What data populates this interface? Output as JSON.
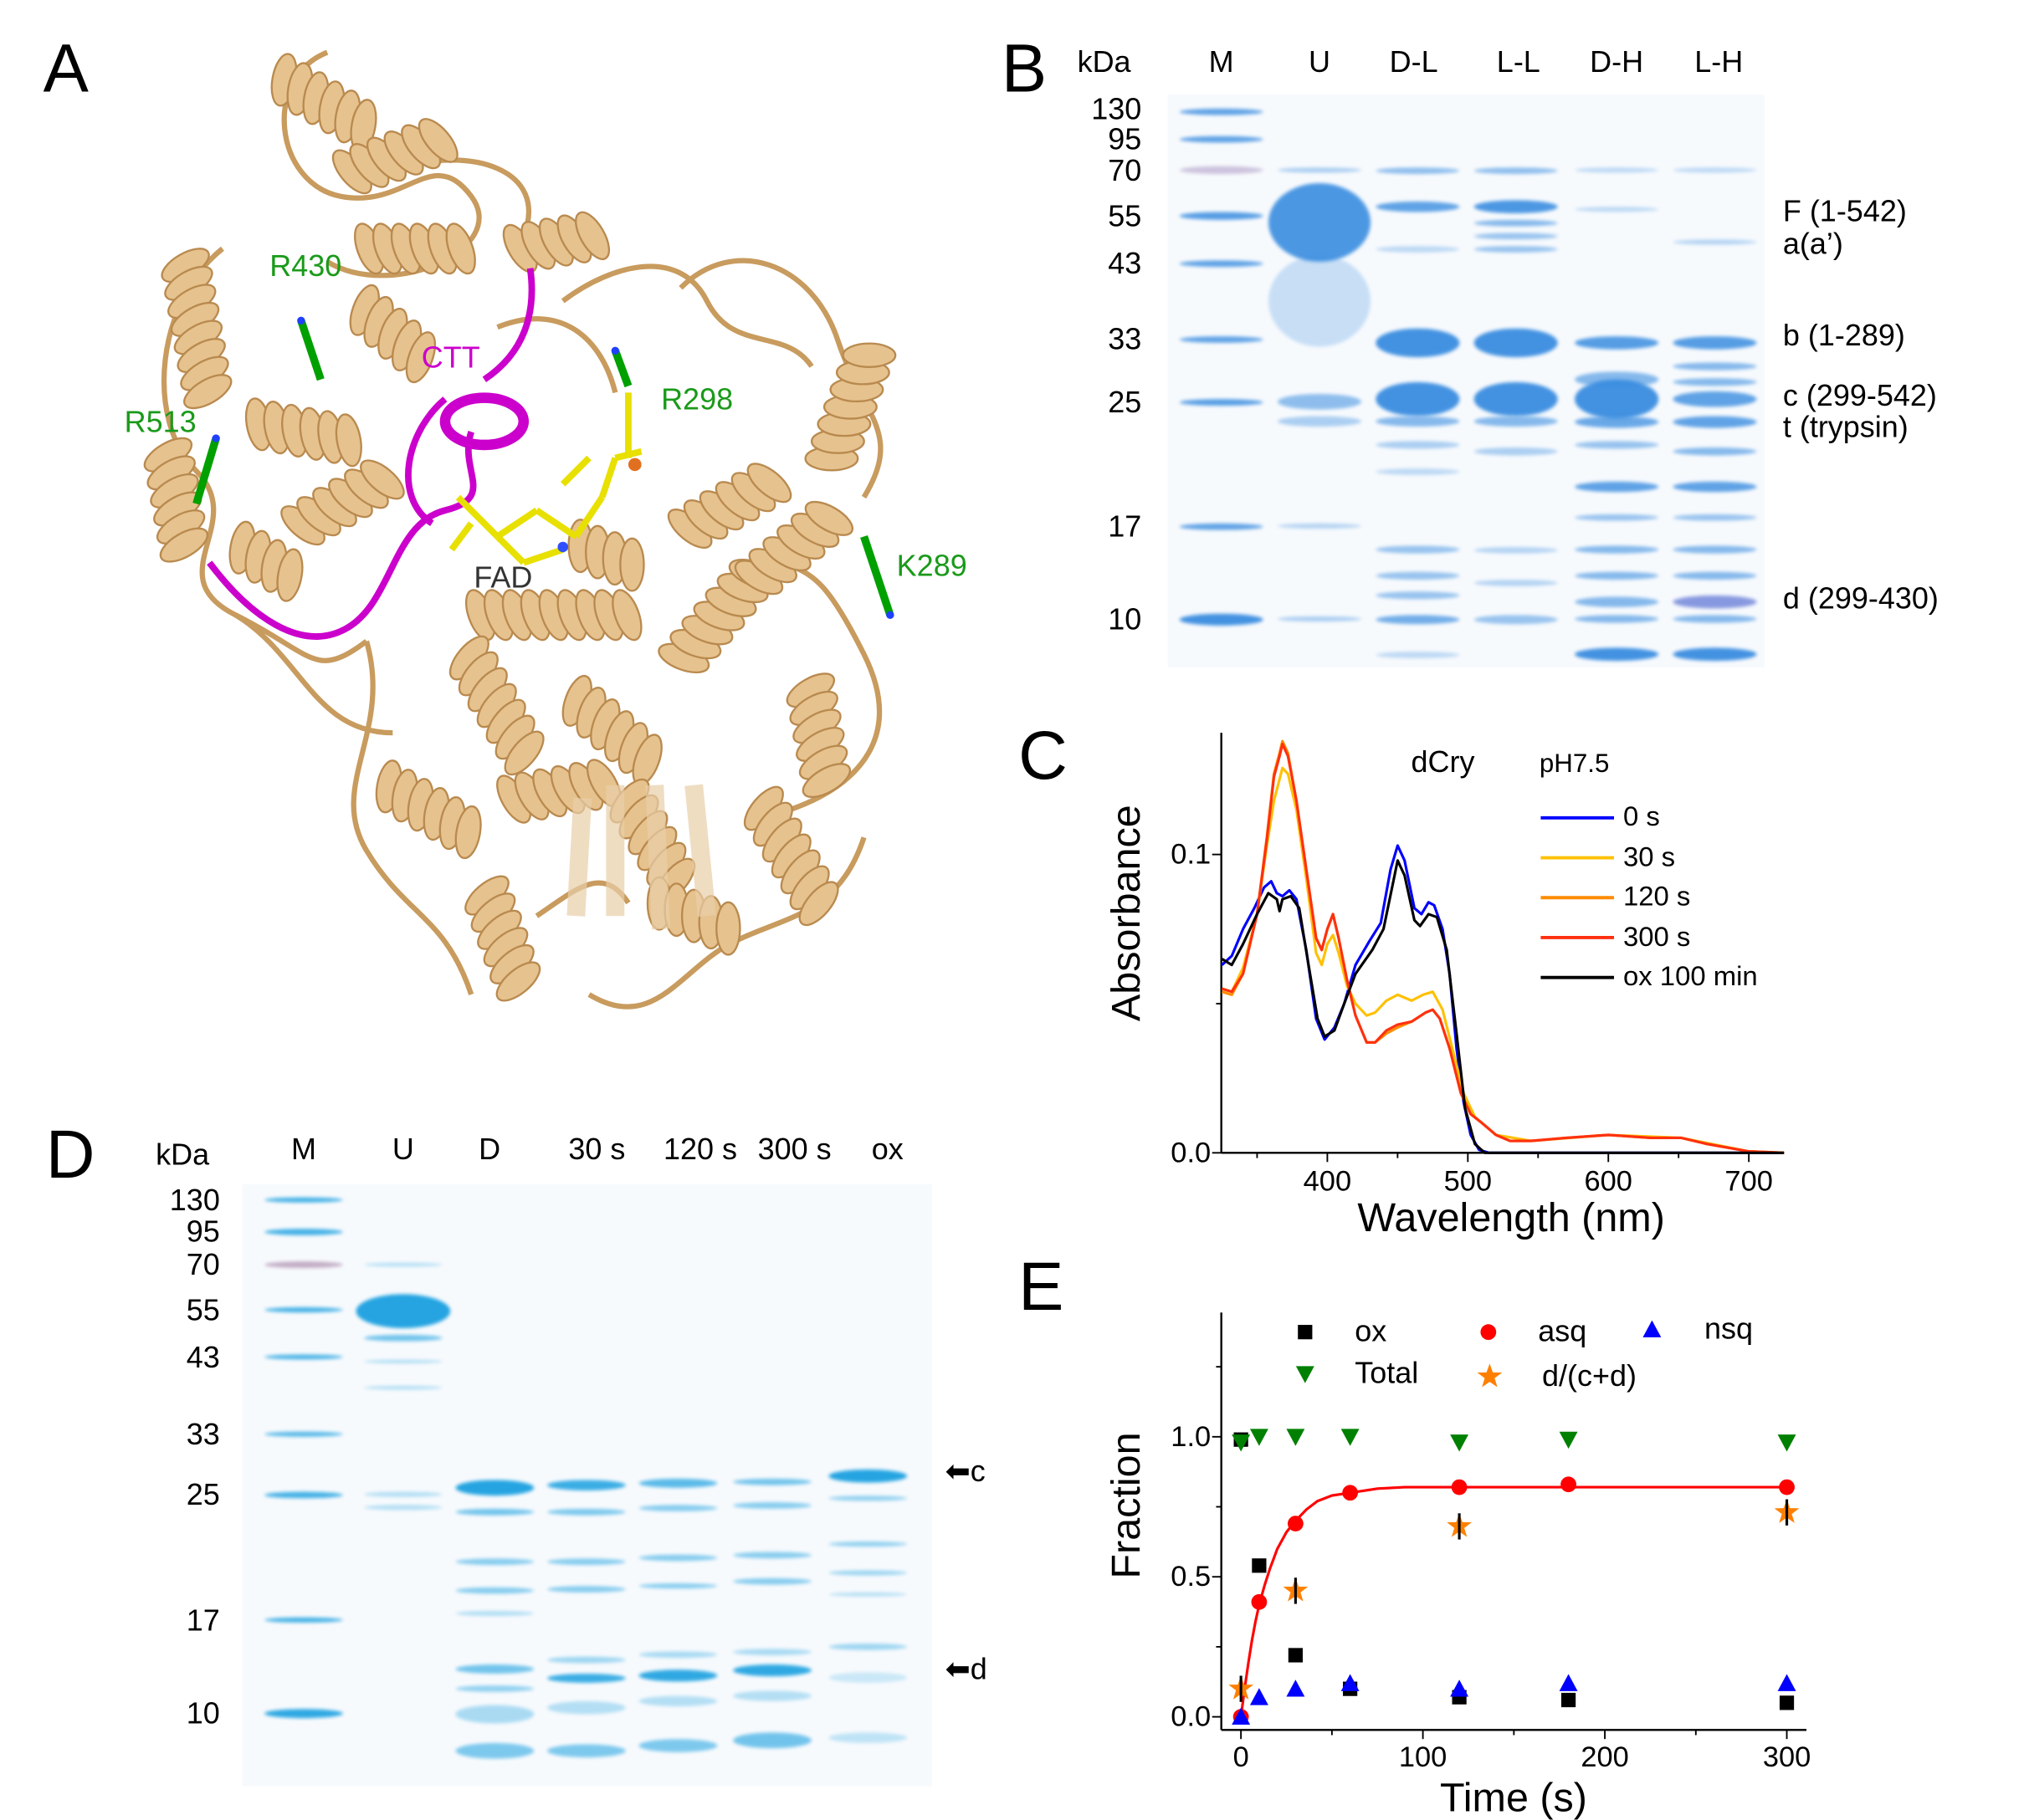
{
  "panel_a": {
    "letter": "A",
    "labels": {
      "r430": "R430",
      "ctt": "CTT",
      "r298": "R298",
      "r513": "R513",
      "fad": "FAD",
      "k289": "K289"
    },
    "colors": {
      "protein": "#deb887",
      "ctt": "#cc00cc",
      "residues": "#00a000",
      "fad": "#e8e000"
    }
  },
  "panel_b": {
    "letter": "B",
    "unit": "kDa",
    "lanes": [
      "M",
      "U",
      "D-L",
      "L-L",
      "D-H",
      "L-H"
    ],
    "markers": [
      "130",
      "95",
      "70",
      "55",
      "43",
      "33",
      "25",
      "17",
      "10"
    ],
    "band_labels": [
      "F (1-542)",
      "a(a’)",
      "b (1-289)",
      "c (299-542)",
      "t (trypsin)",
      "d (299-430)"
    ]
  },
  "panel_d": {
    "letter": "D",
    "unit": "kDa",
    "lanes": [
      "M",
      "U",
      "D",
      "30 s",
      "120 s",
      "300 s",
      "ox"
    ],
    "markers": [
      "130",
      "95",
      "70",
      "55",
      "43",
      "33",
      "25",
      "17",
      "10"
    ],
    "arrows": [
      {
        "icon": "arrow-left-icon",
        "label": "c"
      },
      {
        "icon": "arrow-left-icon",
        "label": "d"
      }
    ]
  },
  "chart_data": [
    {
      "panel": "C",
      "type": "line",
      "xlabel": "Wavelength (nm)",
      "ylabel": "Absorbance",
      "xlim": [
        325,
        725
      ],
      "ylim": [
        0,
        0.14
      ],
      "xticks": [
        "400",
        "500",
        "600",
        "700"
      ],
      "yticks": [
        "0.0",
        "0.1"
      ],
      "annotations": [
        "dCry",
        "pH7.5"
      ],
      "legend": "top-right",
      "grid": false,
      "series": [
        {
          "name": "0 s",
          "color": "#0000ff",
          "points": [
            [
              325,
              0.063
            ],
            [
              332,
              0.066
            ],
            [
              340,
              0.075
            ],
            [
              348,
              0.082
            ],
            [
              355,
              0.089
            ],
            [
              360,
              0.091
            ],
            [
              364,
              0.087
            ],
            [
              368,
              0.086
            ],
            [
              373,
              0.088
            ],
            [
              378,
              0.085
            ],
            [
              385,
              0.068
            ],
            [
              392,
              0.045
            ],
            [
              398,
              0.038
            ],
            [
              405,
              0.042
            ],
            [
              412,
              0.05
            ],
            [
              420,
              0.063
            ],
            [
              430,
              0.071
            ],
            [
              438,
              0.077
            ],
            [
              445,
              0.095
            ],
            [
              450,
              0.103
            ],
            [
              455,
              0.098
            ],
            [
              462,
              0.082
            ],
            [
              467,
              0.08
            ],
            [
              472,
              0.084
            ],
            [
              476,
              0.083
            ],
            [
              482,
              0.075
            ],
            [
              487,
              0.06
            ],
            [
              492,
              0.035
            ],
            [
              497,
              0.017
            ],
            [
              502,
              0.006
            ],
            [
              508,
              0.001
            ],
            [
              515,
              0
            ],
            [
              725,
              0
            ]
          ]
        },
        {
          "name": "30 s",
          "color": "#ffc000",
          "points": [
            [
              325,
              0.055
            ],
            [
              332,
              0.054
            ],
            [
              340,
              0.062
            ],
            [
              350,
              0.08
            ],
            [
              357,
              0.103
            ],
            [
              362,
              0.118
            ],
            [
              368,
              0.129
            ],
            [
              372,
              0.127
            ],
            [
              378,
              0.115
            ],
            [
              385,
              0.092
            ],
            [
              392,
              0.067
            ],
            [
              396,
              0.063
            ],
            [
              400,
              0.07
            ],
            [
              404,
              0.073
            ],
            [
              408,
              0.067
            ],
            [
              414,
              0.056
            ],
            [
              420,
              0.05
            ],
            [
              428,
              0.046
            ],
            [
              434,
              0.047
            ],
            [
              442,
              0.051
            ],
            [
              450,
              0.053
            ],
            [
              460,
              0.051
            ],
            [
              468,
              0.053
            ],
            [
              475,
              0.054
            ],
            [
              482,
              0.048
            ],
            [
              490,
              0.033
            ],
            [
              497,
              0.02
            ],
            [
              505,
              0.012
            ],
            [
              520,
              0.006
            ],
            [
              545,
              0.004
            ],
            [
              600,
              0.006
            ],
            [
              652,
              0.005
            ],
            [
              700,
              0.0005
            ],
            [
              725,
              0
            ]
          ]
        },
        {
          "name": "120 s",
          "color": "#ff8c00",
          "points": [
            [
              325,
              0.054
            ],
            [
              332,
              0.053
            ],
            [
              340,
              0.06
            ],
            [
              350,
              0.08
            ],
            [
              357,
              0.106
            ],
            [
              362,
              0.127
            ],
            [
              366,
              0.134
            ],
            [
              368,
              0.138
            ],
            [
              372,
              0.134
            ],
            [
              378,
              0.118
            ],
            [
              385,
              0.095
            ],
            [
              392,
              0.072
            ],
            [
              396,
              0.068
            ],
            [
              400,
              0.075
            ],
            [
              404,
              0.08
            ],
            [
              408,
              0.072
            ],
            [
              414,
              0.058
            ],
            [
              420,
              0.046
            ],
            [
              428,
              0.037
            ],
            [
              434,
              0.037
            ],
            [
              442,
              0.04
            ],
            [
              450,
              0.042
            ],
            [
              460,
              0.044
            ],
            [
              470,
              0.047
            ],
            [
              475,
              0.048
            ],
            [
              480,
              0.045
            ],
            [
              487,
              0.035
            ],
            [
              495,
              0.02
            ],
            [
              502,
              0.013
            ],
            [
              510,
              0.01
            ],
            [
              520,
              0.006
            ],
            [
              530,
              0.004
            ],
            [
              545,
              0.004
            ],
            [
              570,
              0.005
            ],
            [
              600,
              0.006
            ],
            [
              630,
              0.005
            ],
            [
              652,
              0.005
            ],
            [
              670,
              0.003
            ],
            [
              700,
              0.0005
            ],
            [
              725,
              0
            ]
          ]
        },
        {
          "name": "300 s",
          "color": "#ff3010",
          "points": [
            [
              325,
              0.055
            ],
            [
              332,
              0.054
            ],
            [
              340,
              0.06
            ],
            [
              350,
              0.08
            ],
            [
              357,
              0.105
            ],
            [
              362,
              0.126
            ],
            [
              366,
              0.133
            ],
            [
              368,
              0.137
            ],
            [
              372,
              0.133
            ],
            [
              378,
              0.118
            ],
            [
              385,
              0.095
            ],
            [
              392,
              0.072
            ],
            [
              396,
              0.068
            ],
            [
              400,
              0.075
            ],
            [
              404,
              0.08
            ],
            [
              408,
              0.072
            ],
            [
              414,
              0.058
            ],
            [
              420,
              0.046
            ],
            [
              428,
              0.037
            ],
            [
              434,
              0.037
            ],
            [
              442,
              0.041
            ],
            [
              450,
              0.043
            ],
            [
              460,
              0.044
            ],
            [
              470,
              0.047
            ],
            [
              475,
              0.048
            ],
            [
              480,
              0.045
            ],
            [
              487,
              0.035
            ],
            [
              495,
              0.02
            ],
            [
              502,
              0.013
            ],
            [
              510,
              0.01
            ],
            [
              520,
              0.006
            ],
            [
              530,
              0.004
            ],
            [
              545,
              0.004
            ],
            [
              570,
              0.005
            ],
            [
              600,
              0.006
            ],
            [
              630,
              0.005
            ],
            [
              652,
              0.005
            ],
            [
              670,
              0.003
            ],
            [
              700,
              0.0005
            ],
            [
              725,
              0
            ]
          ]
        },
        {
          "name": "ox 100 min",
          "color": "#000000",
          "points": [
            [
              325,
              0.065
            ],
            [
              332,
              0.063
            ],
            [
              340,
              0.07
            ],
            [
              350,
              0.08
            ],
            [
              358,
              0.087
            ],
            [
              364,
              0.085
            ],
            [
              366,
              0.081
            ],
            [
              368,
              0.085
            ],
            [
              374,
              0.086
            ],
            [
              380,
              0.082
            ],
            [
              387,
              0.062
            ],
            [
              393,
              0.045
            ],
            [
              398,
              0.039
            ],
            [
              405,
              0.041
            ],
            [
              412,
              0.05
            ],
            [
              420,
              0.06
            ],
            [
              432,
              0.068
            ],
            [
              440,
              0.075
            ],
            [
              450,
              0.098
            ],
            [
              455,
              0.093
            ],
            [
              462,
              0.078
            ],
            [
              466,
              0.076
            ],
            [
              472,
              0.08
            ],
            [
              478,
              0.079
            ],
            [
              485,
              0.068
            ],
            [
              492,
              0.04
            ],
            [
              498,
              0.015
            ],
            [
              505,
              0.003
            ],
            [
              512,
              0
            ],
            [
              725,
              0
            ]
          ]
        }
      ]
    },
    {
      "panel": "E",
      "type": "scatter",
      "xlabel": "Time (s)",
      "ylabel": "Fraction",
      "xlim": [
        -10,
        310
      ],
      "ylim": [
        -0.05,
        1.44
      ],
      "xticks": [
        "0",
        "100",
        "200",
        "300"
      ],
      "yticks": [
        "0.0",
        "0.5",
        "1.0"
      ],
      "legend": "top",
      "grid": false,
      "series": [
        {
          "name": "ox",
          "marker": "square",
          "color": "#000000",
          "x": [
            0,
            10,
            30,
            60,
            120,
            180,
            300
          ],
          "y": [
            0.99,
            0.54,
            0.22,
            0.1,
            0.07,
            0.06,
            0.05
          ]
        },
        {
          "name": "asq",
          "marker": "circle",
          "color": "#ff0000",
          "x": [
            0,
            10,
            30,
            60,
            120,
            180,
            300
          ],
          "y": [
            0.0,
            0.41,
            0.69,
            0.8,
            0.82,
            0.83,
            0.82
          ]
        },
        {
          "name": "nsq",
          "marker": "triangle-up",
          "color": "#0000ff",
          "x": [
            0,
            10,
            30,
            60,
            120,
            180,
            300
          ],
          "y": [
            0.0,
            0.07,
            0.1,
            0.12,
            0.1,
            0.12,
            0.12
          ]
        },
        {
          "name": "Total",
          "marker": "triangle-down",
          "color": "#008000",
          "x": [
            0,
            10,
            30,
            60,
            120,
            180,
            300
          ],
          "y": [
            0.98,
            1.0,
            1.0,
            1.0,
            0.98,
            0.99,
            0.98
          ]
        },
        {
          "name": "d/(c+d)",
          "marker": "star",
          "color": "#ff8000",
          "x": [
            0,
            30,
            120,
            300
          ],
          "y": [
            0.1,
            0.45,
            0.68,
            0.73
          ]
        }
      ],
      "fit": {
        "color": "#ff0000",
        "x": [
          0,
          2,
          4,
          6,
          8,
          10,
          13,
          16,
          20,
          25,
          30,
          36,
          42,
          50,
          60,
          75,
          90,
          120,
          180,
          300
        ],
        "y": [
          0,
          0.1,
          0.19,
          0.27,
          0.34,
          0.4,
          0.47,
          0.53,
          0.6,
          0.66,
          0.7,
          0.74,
          0.77,
          0.79,
          0.8,
          0.815,
          0.82,
          0.82,
          0.82,
          0.82
        ]
      }
    }
  ]
}
